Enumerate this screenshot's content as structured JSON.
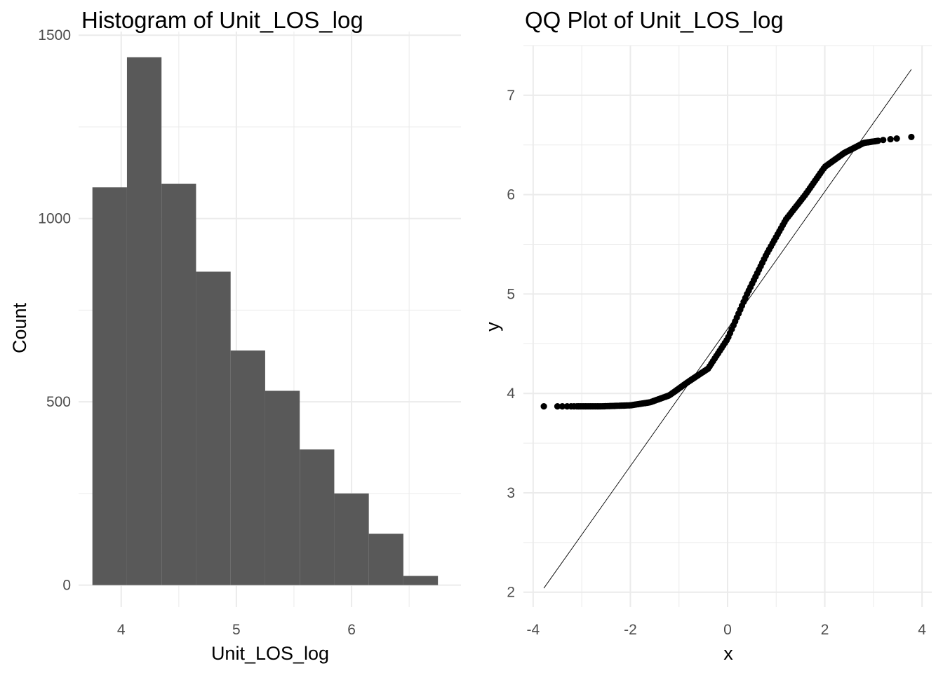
{
  "chart_data": [
    {
      "type": "bar",
      "title": "Histogram of Unit_LOS_log",
      "xlabel": "Unit_LOS_log",
      "ylabel": "Count",
      "x_ticks": [
        "4",
        "5",
        "6"
      ],
      "y_ticks": [
        "0",
        "500",
        "1000",
        "1500"
      ],
      "xlim": [
        3.63,
        6.95
      ],
      "ylim": [
        -60,
        1510
      ],
      "bins": [
        {
          "x0": 3.75,
          "x1": 4.05,
          "count": 1085
        },
        {
          "x0": 4.05,
          "x1": 4.35,
          "count": 1440
        },
        {
          "x0": 4.35,
          "x1": 4.65,
          "count": 1095
        },
        {
          "x0": 4.65,
          "x1": 4.95,
          "count": 855
        },
        {
          "x0": 4.95,
          "x1": 5.25,
          "count": 640
        },
        {
          "x0": 5.25,
          "x1": 5.55,
          "count": 530
        },
        {
          "x0": 5.55,
          "x1": 5.85,
          "count": 370
        },
        {
          "x0": 5.85,
          "x1": 6.15,
          "count": 250
        },
        {
          "x0": 6.15,
          "x1": 6.45,
          "count": 140
        },
        {
          "x0": 6.45,
          "x1": 6.75,
          "count": 25
        }
      ],
      "bar_color": "#595959",
      "grid": true
    },
    {
      "type": "scatter",
      "title": "QQ Plot of Unit_LOS_log",
      "xlabel": "x",
      "ylabel": "y",
      "x_ticks": [
        "-4",
        "-2",
        "0",
        "2",
        "4"
      ],
      "y_ticks": [
        "2",
        "3",
        "4",
        "5",
        "6",
        "7"
      ],
      "xlim": [
        -4.2,
        4.2
      ],
      "ylim": [
        1.85,
        7.5
      ],
      "reference_line": {
        "x": [
          -3.78,
          3.78
        ],
        "y": [
          2.04,
          7.26
        ]
      },
      "sample_quantiles": {
        "x": [
          -3.78,
          -2.6,
          -2.0,
          -1.6,
          -1.2,
          -0.8,
          -0.4,
          0.0,
          0.4,
          0.8,
          1.2,
          1.6,
          2.0,
          2.4,
          2.8,
          3.2,
          3.78
        ],
        "y": [
          3.87,
          3.87,
          3.88,
          3.91,
          3.98,
          4.12,
          4.25,
          4.55,
          5.0,
          5.4,
          5.75,
          6.0,
          6.28,
          6.42,
          6.52,
          6.55,
          6.58
        ]
      },
      "point_color": "#000000",
      "grid": true
    }
  ]
}
